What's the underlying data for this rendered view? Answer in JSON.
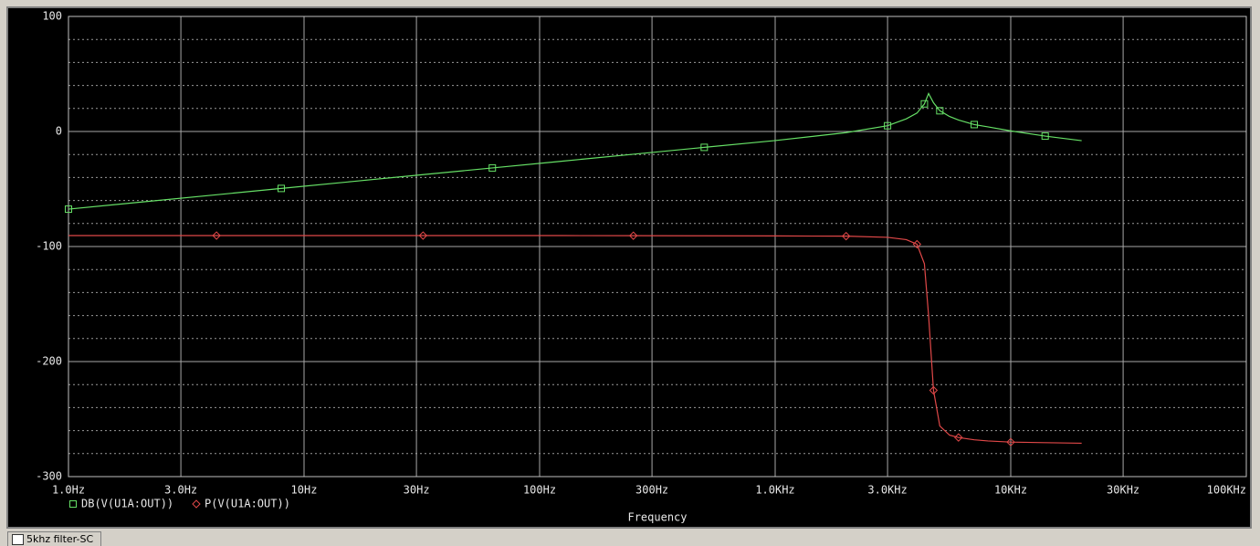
{
  "chart_data": {
    "type": "line",
    "xlabel": "Frequency",
    "xscale": "log",
    "x": [
      1,
      2,
      4.25,
      8,
      16,
      32,
      63,
      125,
      250,
      500,
      1000,
      2000,
      3000,
      3600,
      4000,
      4300,
      4480,
      4700,
      5000,
      5500,
      6000,
      7000,
      8000,
      10000,
      14000,
      20000
    ],
    "xlim": [
      1,
      100000
    ],
    "xticks": [
      {
        "value": 1,
        "label": "1.0Hz"
      },
      {
        "value": 3,
        "label": "3.0Hz"
      },
      {
        "value": 10,
        "label": "10Hz"
      },
      {
        "value": 30,
        "label": "30Hz"
      },
      {
        "value": 100,
        "label": "100Hz"
      },
      {
        "value": 300,
        "label": "300Hz"
      },
      {
        "value": 1000,
        "label": "1.0KHz"
      },
      {
        "value": 3000,
        "label": "3.0KHz"
      },
      {
        "value": 10000,
        "label": "10KHz"
      },
      {
        "value": 30000,
        "label": "30KHz"
      },
      {
        "value": 100000,
        "label": "100KHz"
      }
    ],
    "ylim": [
      -300,
      100
    ],
    "yticks": [
      -300,
      -200,
      -100,
      0,
      100
    ],
    "yminorticks": [
      -280,
      -260,
      -240,
      -220,
      -180,
      -160,
      -140,
      -120,
      -80,
      -60,
      -40,
      -20,
      20,
      40,
      60,
      80
    ],
    "grid": true,
    "series": [
      {
        "name": "DB(V(U1A:OUT))",
        "color": "#66e066",
        "marker": "square",
        "values": [
          -67.5,
          -61.5,
          -55,
          -49.5,
          -43.5,
          -37.5,
          -31.7,
          -25.8,
          -19.8,
          -13.8,
          -7.9,
          -1,
          5,
          11,
          16,
          24,
          33,
          25,
          18,
          13,
          10,
          6,
          4,
          0.5,
          -4,
          -8
        ]
      },
      {
        "name": "P(V(U1A:OUT))",
        "color": "#e04848",
        "marker": "diamond",
        "values": [
          -90.5,
          -90.5,
          -90.5,
          -90.5,
          -90.5,
          -90.5,
          -90.5,
          -90.5,
          -90.6,
          -90.7,
          -90.8,
          -91,
          -92,
          -94,
          -98,
          -115,
          -160,
          -225,
          -256,
          -264,
          -266,
          -268,
          -269,
          -270,
          -270.5,
          -271
        ]
      }
    ]
  },
  "window": {
    "tab": "5khz filter-SC"
  }
}
